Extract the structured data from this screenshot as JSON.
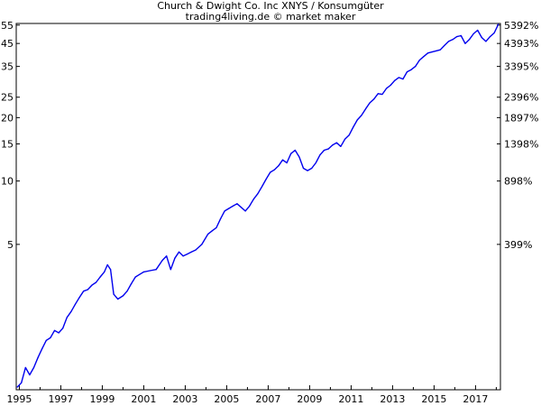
{
  "title": "Church & Dwight Co. Inc XNYS / Konsumgüter",
  "subtitle": "trading4living.de © market maker",
  "chart_data": {
    "type": "line",
    "title": "Church & Dwight Co. Inc XNYS / Konsumgüter",
    "subtitle": "trading4living.de © market maker",
    "y_scale": "log",
    "ylim": [
      1.02,
      56
    ],
    "xlim": [
      1994.85,
      2018.2
    ],
    "y_ticks_left": [
      5,
      10,
      15,
      20,
      25,
      35,
      45,
      55
    ],
    "y_ticks_right": [
      "399%",
      "898%",
      "1398%",
      "1897%",
      "2396%",
      "3395%",
      "4393%",
      "5392%"
    ],
    "y_ticks_right_values": [
      5,
      10,
      15,
      20,
      25,
      35,
      45,
      55
    ],
    "x_ticks": [
      1995,
      1997,
      1999,
      2001,
      2003,
      2005,
      2007,
      2009,
      2011,
      2013,
      2015,
      2017
    ],
    "grid": false,
    "line_color": "#0000ee",
    "series": [
      {
        "x": [
          1994.9,
          1995.1,
          1995.3,
          1995.5,
          1995.7,
          1995.9,
          1996.1,
          1996.3,
          1996.5,
          1996.7,
          1996.9,
          1997.1,
          1997.3,
          1997.5,
          1997.7,
          1997.9,
          1998.1,
          1998.3,
          1998.5,
          1998.7,
          1998.9,
          1999.1,
          1999.25,
          1999.4,
          1999.55,
          1999.75,
          2000.0,
          2000.2,
          2000.4,
          2000.6,
          2000.8,
          2001.0,
          2001.3,
          2001.6,
          2001.9,
          2002.1,
          2002.3,
          2002.5,
          2002.7,
          2002.9,
          2003.1,
          2003.3,
          2003.5,
          2003.8,
          2004.1,
          2004.3,
          2004.5,
          2004.7,
          2004.9,
          2005.1,
          2005.3,
          2005.5,
          2005.7,
          2005.9,
          2006.1,
          2006.3,
          2006.5,
          2006.7,
          2006.9,
          2007.1,
          2007.3,
          2007.5,
          2007.7,
          2007.9,
          2008.1,
          2008.3,
          2008.5,
          2008.7,
          2008.9,
          2009.1,
          2009.3,
          2009.5,
          2009.7,
          2009.9,
          2010.1,
          2010.3,
          2010.5,
          2010.7,
          2010.9,
          2011.1,
          2011.3,
          2011.5,
          2011.7,
          2011.9,
          2012.1,
          2012.3,
          2012.5,
          2012.7,
          2012.9,
          2013.1,
          2013.3,
          2013.5,
          2013.7,
          2013.9,
          2014.1,
          2014.3,
          2014.5,
          2014.7,
          2014.9,
          2015.1,
          2015.3,
          2015.5,
          2015.7,
          2015.9,
          2016.1,
          2016.3,
          2016.5,
          2016.7,
          2016.9,
          2017.1,
          2017.3,
          2017.5,
          2017.7,
          2017.9,
          2018.1
        ],
        "y": [
          1.05,
          1.1,
          1.3,
          1.2,
          1.3,
          1.45,
          1.6,
          1.75,
          1.8,
          1.95,
          1.9,
          2.0,
          2.25,
          2.4,
          2.6,
          2.8,
          3.0,
          3.05,
          3.2,
          3.3,
          3.5,
          3.7,
          4.0,
          3.8,
          2.9,
          2.75,
          2.85,
          3.0,
          3.25,
          3.5,
          3.6,
          3.7,
          3.75,
          3.8,
          4.2,
          4.4,
          3.8,
          4.3,
          4.6,
          4.4,
          4.5,
          4.6,
          4.7,
          5.0,
          5.6,
          5.8,
          6.0,
          6.6,
          7.2,
          7.4,
          7.6,
          7.8,
          7.5,
          7.2,
          7.6,
          8.2,
          8.7,
          9.4,
          10.2,
          11.0,
          11.3,
          11.8,
          12.6,
          12.2,
          13.5,
          14.0,
          13.0,
          11.5,
          11.2,
          11.5,
          12.2,
          13.3,
          14.0,
          14.2,
          14.8,
          15.2,
          14.6,
          15.8,
          16.5,
          18.0,
          19.5,
          20.5,
          22.0,
          23.5,
          24.5,
          26.0,
          25.8,
          27.5,
          28.5,
          30.0,
          31.0,
          30.5,
          33.0,
          33.8,
          35.0,
          37.5,
          39.0,
          40.5,
          41.0,
          41.5,
          42.0,
          44.0,
          46.0,
          47.0,
          48.5,
          49.0,
          45.0,
          47.0,
          50.0,
          52.0,
          48.0,
          46.0,
          48.5,
          50.5,
          55.5
        ]
      }
    ]
  }
}
